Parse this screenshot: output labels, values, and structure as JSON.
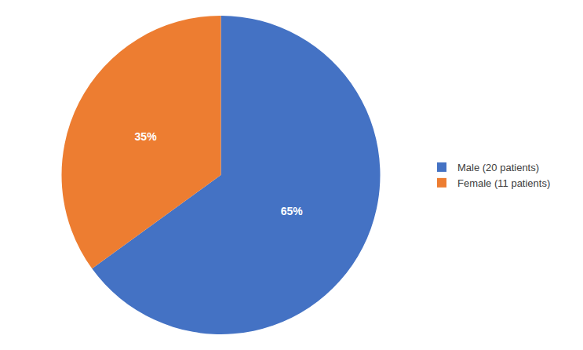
{
  "chart_data": {
    "type": "pie",
    "categories": [
      "Male (20 patients)",
      "Female (11 patients)"
    ],
    "values": [
      65,
      35
    ],
    "value_labels": [
      "65%",
      "35%"
    ],
    "colors": [
      "#4472C4",
      "#ED7D31"
    ],
    "data_labels": true,
    "legend": "right"
  }
}
